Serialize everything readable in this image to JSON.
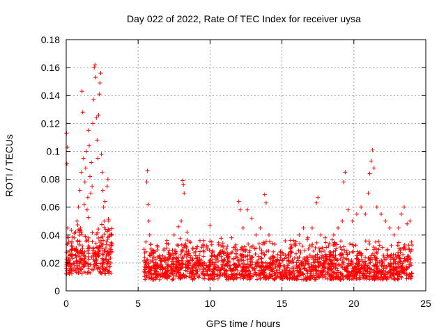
{
  "chart_data": {
    "type": "scatter",
    "title": "Day 022 of 2022, Rate Of TEC Index for receiver uysa",
    "xlabel": "GPS time / hours",
    "ylabel": "ROTI / TECUs",
    "xlim": [
      0,
      25
    ],
    "ylim": [
      0,
      0.18
    ],
    "xticks": [
      0,
      5,
      10,
      15,
      20,
      25
    ],
    "yticks": [
      0,
      0.02,
      0.04,
      0.06,
      0.08,
      0.1,
      0.12,
      0.14,
      0.16,
      0.18
    ],
    "xtick_labels": [
      "0",
      "5",
      "10",
      "15",
      "20",
      "25"
    ],
    "ytick_labels": [
      "0",
      "0.02",
      "0.04",
      "0.06",
      "0.08",
      "0.1",
      "0.12",
      "0.14",
      "0.16",
      "0.18"
    ],
    "grid": true,
    "marker": "+",
    "color": "#ff0000",
    "series": [
      {
        "points": [
          [
            0.02,
            0.113
          ],
          [
            0.05,
            0.091
          ],
          [
            0.08,
            0.103
          ],
          [
            0.1,
            0.045
          ],
          [
            0.12,
            0.028
          ],
          [
            0.15,
            0.018
          ],
          [
            0.18,
            0.035
          ],
          [
            0.22,
            0.012
          ],
          [
            0.25,
            0.022
          ],
          [
            0.3,
            0.016
          ],
          [
            0.35,
            0.026
          ],
          [
            0.4,
            0.014
          ],
          [
            0.45,
            0.03
          ],
          [
            0.5,
            0.02
          ],
          [
            0.55,
            0.038
          ],
          [
            0.6,
            0.017
          ],
          [
            0.65,
            0.042
          ],
          [
            0.7,
            0.024
          ],
          [
            0.75,
            0.05
          ],
          [
            0.8,
            0.028
          ],
          [
            0.85,
            0.06
          ],
          [
            0.9,
            0.033
          ],
          [
            0.95,
            0.072
          ],
          [
            1.0,
            0.045
          ],
          [
            1.05,
            0.085
          ],
          [
            1.1,
            0.143
          ],
          [
            1.15,
            0.128
          ],
          [
            1.2,
            0.095
          ],
          [
            1.25,
            0.062
          ],
          [
            1.3,
            0.078
          ],
          [
            1.35,
            0.088
          ],
          [
            1.4,
            0.1
          ],
          [
            1.45,
            0.058
          ],
          [
            1.5,
            0.067
          ],
          [
            1.55,
            0.115
          ],
          [
            1.6,
            0.104
          ],
          [
            1.65,
            0.082
          ],
          [
            1.7,
            0.07
          ],
          [
            1.75,
            0.092
          ],
          [
            1.8,
            0.075
          ],
          [
            1.85,
            0.12
          ],
          [
            1.9,
            0.137
          ],
          [
            1.95,
            0.16
          ],
          [
            2.0,
            0.162
          ],
          [
            2.05,
            0.153
          ],
          [
            2.1,
            0.124
          ],
          [
            2.15,
            0.108
          ],
          [
            2.2,
            0.095
          ],
          [
            2.25,
            0.126
          ],
          [
            2.3,
            0.141
          ],
          [
            2.35,
            0.149
          ],
          [
            2.4,
            0.156
          ],
          [
            2.45,
            0.098
          ],
          [
            2.5,
            0.085
          ],
          [
            2.55,
            0.072
          ],
          [
            2.6,
            0.06
          ],
          [
            2.65,
            0.05
          ],
          [
            2.7,
            0.064
          ],
          [
            2.75,
            0.044
          ],
          [
            2.8,
            0.035
          ],
          [
            2.85,
            0.075
          ],
          [
            2.9,
            0.08
          ],
          [
            2.95,
            0.05
          ],
          [
            3.0,
            0.04
          ],
          [
            3.05,
            0.03
          ],
          [
            3.1,
            0.02
          ],
          [
            5.5,
            0.02
          ],
          [
            5.55,
            0.035
          ],
          [
            5.6,
            0.078
          ],
          [
            5.65,
            0.086
          ],
          [
            5.7,
            0.062
          ],
          [
            5.75,
            0.05
          ],
          [
            5.8,
            0.04
          ],
          [
            5.9,
            0.03
          ],
          [
            6.0,
            0.022
          ],
          [
            6.2,
            0.028
          ],
          [
            6.5,
            0.025
          ],
          [
            6.8,
            0.03
          ],
          [
            7.0,
            0.034
          ],
          [
            7.2,
            0.026
          ],
          [
            7.5,
            0.04
          ],
          [
            7.8,
            0.046
          ],
          [
            8.0,
            0.05
          ],
          [
            8.1,
            0.079
          ],
          [
            8.15,
            0.076
          ],
          [
            8.2,
            0.07
          ],
          [
            8.4,
            0.042
          ],
          [
            8.6,
            0.035
          ],
          [
            8.8,
            0.03
          ],
          [
            9.0,
            0.028
          ],
          [
            9.3,
            0.036
          ],
          [
            9.5,
            0.033
          ],
          [
            9.8,
            0.03
          ],
          [
            10.0,
            0.047
          ],
          [
            10.3,
            0.025
          ],
          [
            10.6,
            0.033
          ],
          [
            10.9,
            0.028
          ],
          [
            11.2,
            0.032
          ],
          [
            11.5,
            0.038
          ],
          [
            11.8,
            0.033
          ],
          [
            12.0,
            0.064
          ],
          [
            12.1,
            0.058
          ],
          [
            12.3,
            0.045
          ],
          [
            12.6,
            0.058
          ],
          [
            12.9,
            0.052
          ],
          [
            13.2,
            0.04
          ],
          [
            13.5,
            0.045
          ],
          [
            13.8,
            0.069
          ],
          [
            13.9,
            0.063
          ],
          [
            14.1,
            0.04
          ],
          [
            14.4,
            0.028
          ],
          [
            14.7,
            0.026
          ],
          [
            15.0,
            0.022
          ],
          [
            15.3,
            0.024
          ],
          [
            15.6,
            0.03
          ],
          [
            15.9,
            0.033
          ],
          [
            16.2,
            0.04
          ],
          [
            16.5,
            0.045
          ],
          [
            16.8,
            0.038
          ],
          [
            17.1,
            0.045
          ],
          [
            17.4,
            0.063
          ],
          [
            17.5,
            0.067
          ],
          [
            17.7,
            0.04
          ],
          [
            18.0,
            0.038
          ],
          [
            18.3,
            0.034
          ],
          [
            18.6,
            0.04
          ],
          [
            18.9,
            0.045
          ],
          [
            19.2,
            0.05
          ],
          [
            19.3,
            0.078
          ],
          [
            19.4,
            0.085
          ],
          [
            19.6,
            0.058
          ],
          [
            19.9,
            0.05
          ],
          [
            20.2,
            0.055
          ],
          [
            20.5,
            0.06
          ],
          [
            20.8,
            0.055
          ],
          [
            21.0,
            0.07
          ],
          [
            21.1,
            0.084
          ],
          [
            21.2,
            0.093
          ],
          [
            21.3,
            0.101
          ],
          [
            21.4,
            0.088
          ],
          [
            21.6,
            0.06
          ],
          [
            21.9,
            0.055
          ],
          [
            22.2,
            0.05
          ],
          [
            22.5,
            0.045
          ],
          [
            22.8,
            0.04
          ],
          [
            23.1,
            0.045
          ],
          [
            23.3,
            0.055
          ],
          [
            23.5,
            0.06
          ],
          [
            23.7,
            0.048
          ],
          [
            23.9,
            0.05
          ],
          [
            24.0,
            0.035
          ]
        ]
      }
    ]
  }
}
